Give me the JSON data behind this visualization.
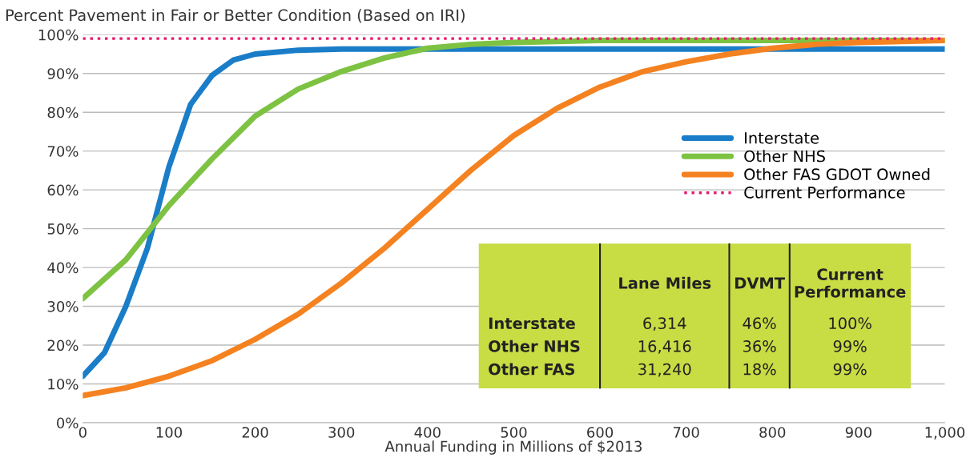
{
  "chart_data": {
    "type": "line",
    "title": "Percent Pavement in Fair or Better Condition (Based on IRI)",
    "xlabel": "Annual Funding in Millions of $2013",
    "series": [
      {
        "name": "Interstate",
        "color": "#1a7dc8",
        "x": [
          0,
          25,
          50,
          75,
          100,
          125,
          150,
          175,
          200,
          250,
          300,
          400,
          600,
          800,
          1000
        ],
        "values": [
          12,
          18,
          30,
          45,
          66,
          82,
          89.5,
          93.5,
          95,
          96,
          96.3,
          96.3,
          96.3,
          96.3,
          96.3
        ]
      },
      {
        "name": "Other NHS",
        "color": "#7dc242",
        "x": [
          0,
          50,
          100,
          150,
          200,
          250,
          300,
          350,
          400,
          450,
          500,
          600,
          800,
          1000
        ],
        "values": [
          32,
          42,
          56,
          68,
          79,
          86,
          90.5,
          94,
          96.5,
          97.5,
          98,
          98.5,
          98.5,
          98.5
        ]
      },
      {
        "name": "Other FAS GDOT Owned",
        "color": "#f58220",
        "x": [
          0,
          50,
          100,
          150,
          200,
          250,
          300,
          350,
          400,
          450,
          500,
          550,
          600,
          650,
          700,
          750,
          800,
          850,
          900,
          1000
        ],
        "values": [
          7,
          9,
          12,
          16,
          21.5,
          28,
          36,
          45,
          55,
          65,
          74,
          81,
          86.5,
          90.5,
          93,
          95,
          96.5,
          97.5,
          98,
          98.5
        ]
      }
    ],
    "ref_lines": [
      {
        "axis": "y",
        "value": 99,
        "label": "Current Performance",
        "color": "#e8196e",
        "line_style": "dotted"
      }
    ],
    "xlim": [
      0,
      1000
    ],
    "xticks": [
      0,
      100,
      200,
      300,
      400,
      500,
      600,
      700,
      800,
      900,
      {
        "value": 1000,
        "label": "1,000"
      }
    ],
    "ylim": [
      0,
      100
    ],
    "yticks": [
      {
        "value": 0,
        "label": "0%"
      },
      {
        "value": 10,
        "label": "10%"
      },
      {
        "value": 20,
        "label": "20%"
      },
      {
        "value": 30,
        "label": "30%"
      },
      {
        "value": 40,
        "label": "40%"
      },
      {
        "value": 50,
        "label": "50%"
      },
      {
        "value": 60,
        "label": "60%"
      },
      {
        "value": 70,
        "label": "70%"
      },
      {
        "value": 80,
        "label": "80%"
      },
      {
        "value": 90,
        "label": "90%"
      },
      {
        "value": 100,
        "label": "100%"
      }
    ],
    "grid": "y",
    "legend": "right",
    "line_style": "solid",
    "marker": "none",
    "annotations": [
      "Lane Miles",
      "DVMT",
      "Current\nPerformance",
      "Interstate",
      "6,314",
      "46%",
      "100%",
      "Other NHS",
      "16,416",
      "36%",
      "99%",
      "Other FAS",
      "31,240",
      "18%",
      "99%"
    ]
  }
}
